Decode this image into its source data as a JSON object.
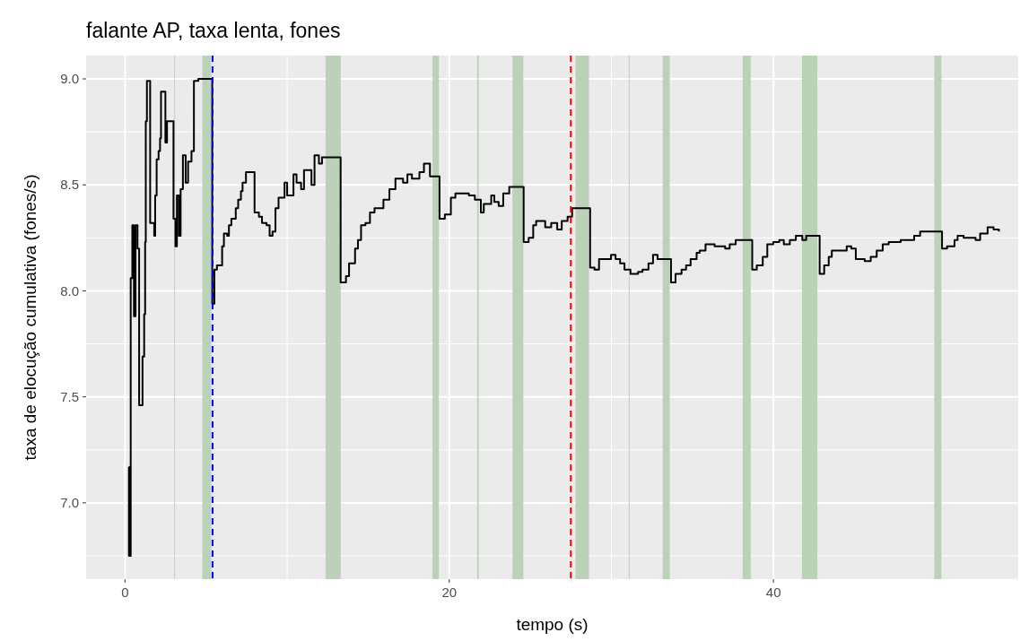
{
  "chart_data": {
    "type": "step",
    "title": "falante AP, taxa lenta, fones",
    "xlabel": "tempo (s)",
    "ylabel": "taxa de elocução cumulativa (fones/s)",
    "xlim": [
      -2.4,
      55.1
    ],
    "ylim": [
      6.64,
      9.11
    ],
    "xticks": [
      0,
      20,
      40
    ],
    "yticks": [
      {
        "value": 7,
        "label": "7.0"
      },
      7.5,
      {
        "value": 8,
        "label": "8.0"
      },
      8.5,
      {
        "value": 9,
        "label": "9.0"
      }
    ],
    "grid": true,
    "line_style": "solid",
    "marker": "none",
    "series": [
      {
        "color": "#000000",
        "x": [
          0.23,
          0.24,
          0.35,
          0.45,
          0.55,
          0.65,
          0.77,
          0.87,
          1.08,
          1.18,
          1.24,
          1.28,
          1.35,
          1.55,
          1.8,
          1.86,
          1.95,
          2.07,
          2.16,
          2.22,
          2.49,
          2.59,
          2.99,
          3.11,
          3.2,
          3.32,
          3.43,
          3.57,
          3.74,
          3.89,
          4.1,
          4.25,
          4.52,
          5.38,
          5.51,
          5.67,
          5.99,
          6.1,
          6.3,
          6.41,
          6.56,
          6.83,
          6.98,
          7.15,
          7.25,
          7.46,
          7.99,
          8.26,
          8.45,
          8.73,
          8.92,
          9.1,
          9.28,
          9.47,
          9.84,
          10.0,
          10.39,
          10.58,
          10.86,
          11.04,
          11.5,
          11.69,
          11.96,
          12.15,
          13.3,
          13.63,
          13.82,
          14.19,
          14.37,
          14.56,
          14.83,
          15.11,
          15.39,
          15.94,
          16.31,
          16.68,
          17.15,
          17.42,
          17.7,
          18.16,
          18.44,
          18.81,
          19.4,
          19.73,
          20.1,
          20.38,
          20.84,
          21.21,
          21.58,
          21.95,
          22.13,
          22.59,
          22.78,
          23.05,
          23.33,
          23.7,
          24.59,
          24.9,
          25.18,
          25.36,
          25.92,
          26.29,
          26.66,
          26.94,
          27.3,
          27.58,
          28.69,
          28.96,
          29.24,
          29.98,
          30.26,
          30.54,
          30.81,
          31.18,
          31.65,
          31.92,
          32.29,
          32.57,
          32.85,
          33.13,
          33.68,
          33.96,
          34.33,
          34.61,
          34.89,
          35.26,
          35.45,
          35.81,
          36.37,
          37.02,
          37.3,
          37.67,
          38.69,
          38.97,
          39.34,
          39.62,
          39.99,
          40.36,
          40.64,
          41.01,
          41.38,
          41.78,
          42.02,
          42.85,
          43.13,
          43.41,
          43.6,
          44.15,
          44.52,
          44.8,
          45.08,
          45.63,
          46.0,
          46.37,
          46.74,
          47.11,
          47.85,
          48.4,
          48.68,
          49.05,
          49.69,
          50.4,
          50.71,
          51.17,
          51.36,
          51.73,
          52.47,
          52.75,
          53.21,
          53.58,
          53.91
        ],
        "values": [
          7.17,
          6.75,
          8.06,
          8.31,
          7.88,
          8.31,
          8.2,
          7.46,
          7.69,
          7.89,
          8.23,
          8.8,
          8.99,
          8.32,
          8.26,
          8.45,
          8.62,
          8.66,
          8.72,
          8.94,
          8.7,
          8.8,
          8.34,
          8.21,
          8.45,
          8.26,
          8.48,
          8.64,
          8.51,
          8.61,
          8.66,
          8.99,
          9.0,
          7.94,
          8.1,
          8.12,
          8.21,
          8.27,
          8.26,
          8.31,
          8.34,
          8.39,
          8.43,
          8.47,
          8.51,
          8.56,
          8.37,
          8.35,
          8.32,
          8.31,
          8.26,
          8.28,
          8.39,
          8.44,
          8.51,
          8.45,
          8.55,
          8.51,
          8.48,
          8.57,
          8.5,
          8.64,
          8.6,
          8.63,
          8.04,
          8.07,
          8.13,
          8.2,
          8.24,
          8.31,
          8.32,
          8.37,
          8.39,
          8.43,
          8.48,
          8.53,
          8.51,
          8.55,
          8.53,
          8.56,
          8.6,
          8.54,
          8.34,
          8.36,
          8.44,
          8.46,
          8.46,
          8.45,
          8.43,
          8.37,
          8.41,
          8.45,
          8.42,
          8.4,
          8.46,
          8.49,
          8.23,
          8.25,
          8.31,
          8.33,
          8.3,
          8.32,
          8.29,
          8.33,
          8.35,
          8.39,
          8.11,
          8.1,
          8.15,
          8.17,
          8.15,
          8.13,
          8.1,
          8.08,
          8.09,
          8.1,
          8.13,
          8.17,
          8.15,
          8.15,
          8.04,
          8.08,
          8.1,
          8.12,
          8.15,
          8.18,
          8.19,
          8.22,
          8.21,
          8.2,
          8.22,
          8.24,
          8.1,
          8.12,
          8.16,
          8.22,
          8.23,
          8.24,
          8.22,
          8.24,
          8.26,
          8.24,
          8.26,
          8.08,
          8.12,
          8.16,
          8.19,
          8.19,
          8.21,
          8.2,
          8.15,
          8.14,
          8.16,
          8.19,
          8.22,
          8.23,
          8.24,
          8.24,
          8.26,
          8.28,
          8.28,
          8.2,
          8.21,
          8.24,
          8.26,
          8.25,
          8.24,
          8.27,
          8.3,
          8.29,
          8.28
        ]
      }
    ],
    "bands": [
      {
        "axis": "x",
        "from": 3.03,
        "to": 3.08,
        "color": "#c3d3bf"
      },
      {
        "axis": "x",
        "from": 4.77,
        "to": 5.32,
        "color": "#bcd2b8"
      },
      {
        "axis": "x",
        "from": 12.37,
        "to": 13.31,
        "color": "#bcd2b8"
      },
      {
        "axis": "x",
        "from": 18.97,
        "to": 19.36,
        "color": "#bcd2b8"
      },
      {
        "axis": "x",
        "from": 21.72,
        "to": 21.82,
        "color": "#bcd2b8"
      },
      {
        "axis": "x",
        "from": 23.9,
        "to": 24.57,
        "color": "#bcd2b8"
      },
      {
        "axis": "x",
        "from": 27.79,
        "to": 28.62,
        "color": "#bcd2b8"
      },
      {
        "axis": "x",
        "from": 31.07,
        "to": 31.13,
        "color": "#bcd2b8"
      },
      {
        "axis": "x",
        "from": 33.17,
        "to": 33.6,
        "color": "#bcd2b8"
      },
      {
        "axis": "x",
        "from": 38.1,
        "to": 38.6,
        "color": "#bcd2b8"
      },
      {
        "axis": "x",
        "from": 41.76,
        "to": 42.71,
        "color": "#bcd2b8"
      },
      {
        "axis": "x",
        "from": 49.92,
        "to": 50.36,
        "color": "#bcd2b8"
      }
    ],
    "ref_lines": [
      {
        "axis": "x",
        "value": 5.4,
        "color": "#0000ff",
        "line_style": "dashed"
      },
      {
        "axis": "x",
        "value": 27.5,
        "color": "#ff0000",
        "line_style": "dashed"
      }
    ]
  }
}
